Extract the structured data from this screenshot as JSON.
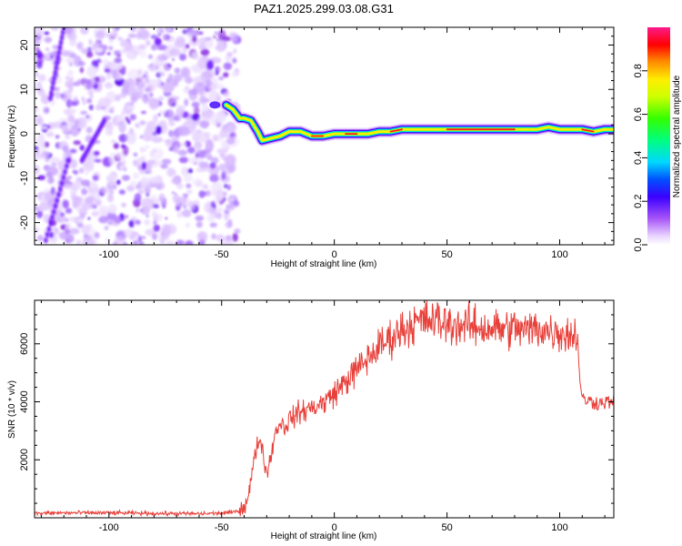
{
  "title": "PAZ1.2025.299.03.08.G31",
  "chart_data": [
    {
      "type": "heatmap",
      "title": "PAZ1.2025.299.03.08.G31",
      "xlabel": "Height of straight line (km)",
      "ylabel": "Frequency (Hz)",
      "xlim": [
        -133,
        124
      ],
      "ylim": [
        -25,
        24
      ],
      "xticks": [
        -100,
        -50,
        0,
        50,
        100
      ],
      "yticks": [
        -20,
        -10,
        0,
        10,
        20
      ],
      "xtick_labels": [
        "-100",
        "-50",
        "0",
        "50",
        "100"
      ],
      "ytick_labels": [
        "-20",
        "-10",
        "0",
        "10",
        "20"
      ],
      "colorbar": {
        "label": "Normalized spectral amplitude",
        "range": [
          0,
          1
        ],
        "ticks": [
          0.0,
          0.2,
          0.4,
          0.6,
          0.8
        ],
        "tick_labels": [
          "0.0",
          "0.2",
          "0.4",
          "0.6",
          "0.8"
        ],
        "colors": [
          "#ffffff",
          "#cfa8ff",
          "#8a2be2",
          "#0000ff",
          "#00ffff",
          "#00ff00",
          "#ffff00",
          "#ff0000",
          "#ff1a8c"
        ]
      },
      "noise_region": {
        "x_range": [
          -133,
          -43
        ],
        "freq_range": [
          -25,
          24
        ]
      },
      "signal_ridge": [
        {
          "x": -48,
          "freq": 6.5
        },
        {
          "x": -45,
          "freq": 5.5
        },
        {
          "x": -42,
          "freq": 3.5
        },
        {
          "x": -40,
          "freq": 3.5
        },
        {
          "x": -37,
          "freq": 3.0
        },
        {
          "x": -34,
          "freq": 0.5
        },
        {
          "x": -32,
          "freq": -1.5
        },
        {
          "x": -28,
          "freq": -1.0
        },
        {
          "x": -24,
          "freq": -0.5
        },
        {
          "x": -20,
          "freq": 0.5
        },
        {
          "x": -15,
          "freq": 0.5
        },
        {
          "x": -10,
          "freq": -0.5
        },
        {
          "x": -5,
          "freq": -0.5
        },
        {
          "x": 0,
          "freq": 0.0
        },
        {
          "x": 5,
          "freq": 0.0
        },
        {
          "x": 10,
          "freq": 0.0
        },
        {
          "x": 15,
          "freq": 0.0
        },
        {
          "x": 20,
          "freq": 0.5
        },
        {
          "x": 25,
          "freq": 0.5
        },
        {
          "x": 30,
          "freq": 1.0
        },
        {
          "x": 40,
          "freq": 1.0
        },
        {
          "x": 50,
          "freq": 1.0
        },
        {
          "x": 60,
          "freq": 1.0
        },
        {
          "x": 70,
          "freq": 1.0
        },
        {
          "x": 80,
          "freq": 1.0
        },
        {
          "x": 90,
          "freq": 1.0
        },
        {
          "x": 95,
          "freq": 1.5
        },
        {
          "x": 100,
          "freq": 1.0
        },
        {
          "x": 105,
          "freq": 1.0
        },
        {
          "x": 110,
          "freq": 1.0
        },
        {
          "x": 115,
          "freq": 0.5
        },
        {
          "x": 120,
          "freq": 1.0
        },
        {
          "x": 124,
          "freq": 1.0
        }
      ]
    },
    {
      "type": "line",
      "xlabel": "Height of straight line (km)",
      "ylabel": "SNR (10 * v/v)",
      "xlim": [
        -133,
        124
      ],
      "ylim": [
        0,
        7500
      ],
      "xticks": [
        -100,
        -50,
        0,
        50,
        100
      ],
      "yticks": [
        2000,
        4000,
        6000
      ],
      "xtick_labels": [
        "-100",
        "-50",
        "0",
        "50",
        "100"
      ],
      "ytick_labels": [
        "2000",
        "4000",
        "6000"
      ],
      "color": "#e8403a",
      "series": [
        {
          "name": "SNR",
          "x": [
            -133,
            -120,
            -100,
            -80,
            -60,
            -50,
            -45,
            -42,
            -40,
            -38,
            -36,
            -34,
            -33,
            -32,
            -30,
            -28,
            -26,
            -24,
            -22,
            -20,
            -18,
            -15,
            -10,
            -5,
            0,
            5,
            10,
            15,
            20,
            25,
            30,
            35,
            40,
            45,
            50,
            55,
            60,
            65,
            70,
            75,
            80,
            85,
            90,
            95,
            100,
            105,
            107,
            108,
            109,
            110,
            112,
            115,
            118,
            120,
            124
          ],
          "y": [
            150,
            170,
            170,
            150,
            140,
            160,
            190,
            250,
            400,
            800,
            1800,
            2600,
            2700,
            2400,
            1500,
            2200,
            3000,
            3300,
            3100,
            3400,
            3500,
            3650,
            3800,
            3950,
            4300,
            4700,
            5100,
            5500,
            5900,
            6200,
            6500,
            6700,
            6800,
            6800,
            6700,
            6650,
            6600,
            6550,
            6550,
            6500,
            6550,
            6450,
            6550,
            6450,
            6400,
            6300,
            6300,
            6200,
            4700,
            4100,
            4050,
            4000,
            3950,
            4000,
            4000
          ]
        }
      ]
    }
  ]
}
